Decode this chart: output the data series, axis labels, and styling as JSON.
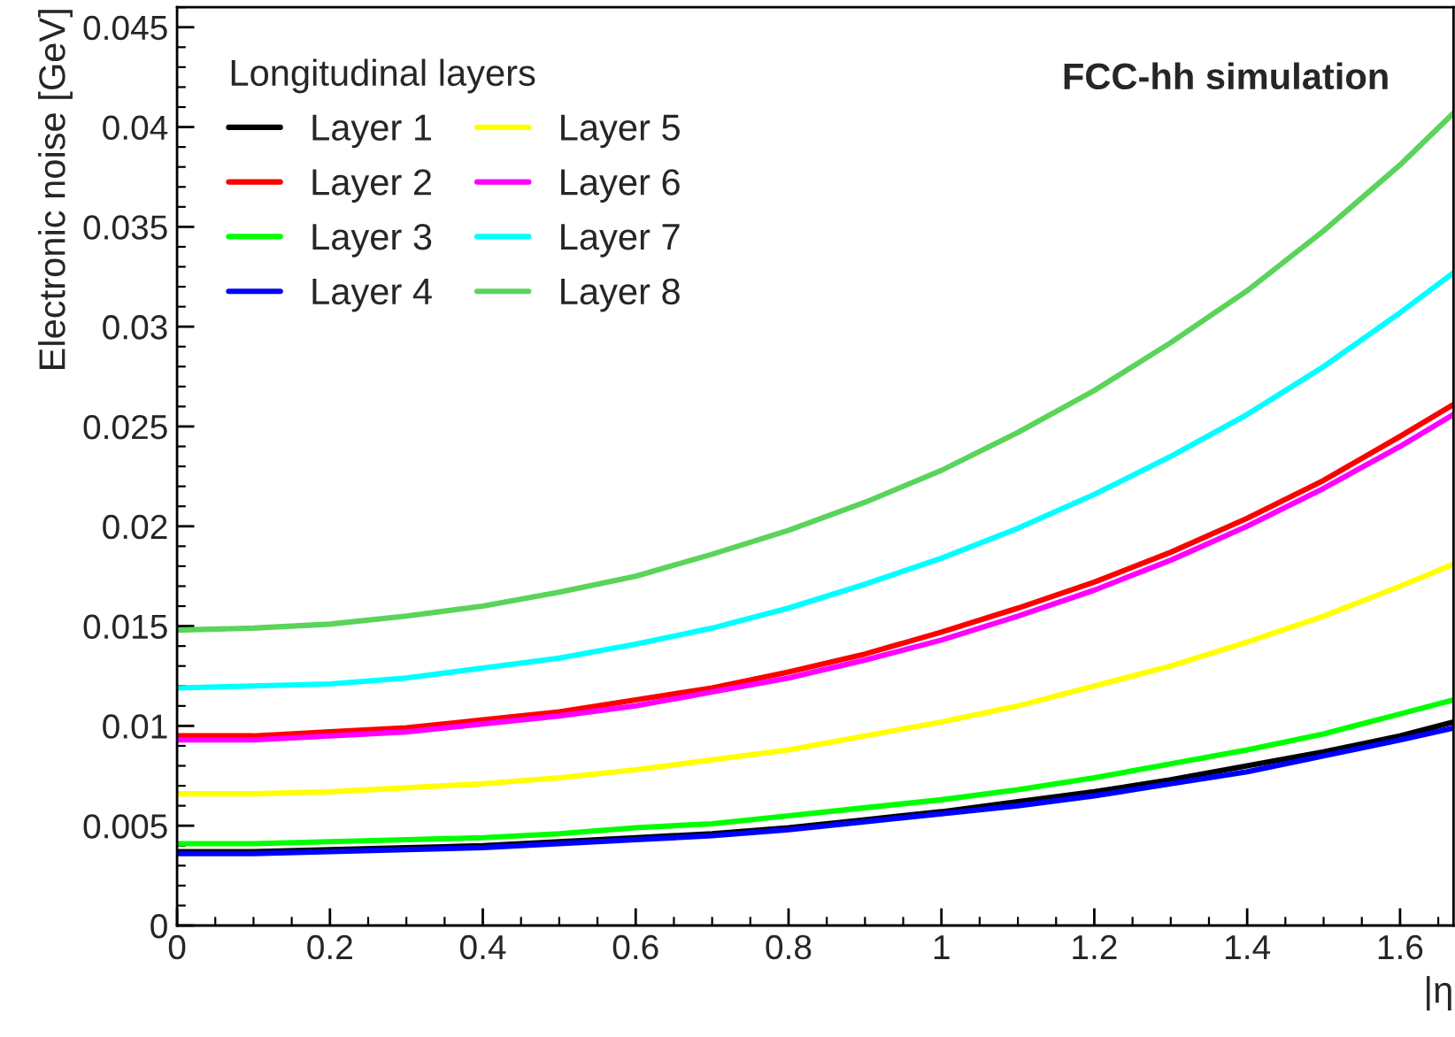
{
  "chart_data": {
    "type": "line",
    "xlabel": "|η",
    "ylabel": "Electronic noise [GeV]",
    "legend_title": "Longitudinal layers",
    "annotations": [
      "FCC-hh simulation"
    ],
    "x": [
      0,
      0.1,
      0.2,
      0.3,
      0.4,
      0.5,
      0.6,
      0.7,
      0.8,
      0.9,
      1.0,
      1.1,
      1.2,
      1.3,
      1.4,
      1.5,
      1.6,
      1.67
    ],
    "series": [
      {
        "name": "Layer 1",
        "color": "#000000",
        "values": [
          0.0037,
          0.0037,
          0.0038,
          0.0039,
          0.004,
          0.0042,
          0.0044,
          0.0046,
          0.0049,
          0.0053,
          0.0057,
          0.0062,
          0.0067,
          0.0073,
          0.008,
          0.0087,
          0.0095,
          0.0102
        ]
      },
      {
        "name": "Layer 2",
        "color": "#ff0000",
        "values": [
          0.0095,
          0.0095,
          0.0097,
          0.0099,
          0.0103,
          0.0107,
          0.0113,
          0.0119,
          0.0127,
          0.0136,
          0.0147,
          0.0159,
          0.0172,
          0.0187,
          0.0204,
          0.0223,
          0.0245,
          0.0261
        ]
      },
      {
        "name": "Layer 3",
        "color": "#00ff00",
        "values": [
          0.0041,
          0.0041,
          0.0042,
          0.0043,
          0.0044,
          0.0046,
          0.0049,
          0.0051,
          0.0055,
          0.0059,
          0.0063,
          0.0068,
          0.0074,
          0.0081,
          0.0088,
          0.0096,
          0.0106,
          0.0113
        ]
      },
      {
        "name": "Layer 4",
        "color": "#0000ff",
        "values": [
          0.0036,
          0.0036,
          0.0037,
          0.0038,
          0.0039,
          0.0041,
          0.0043,
          0.0045,
          0.0048,
          0.0052,
          0.0056,
          0.006,
          0.0065,
          0.0071,
          0.0077,
          0.0085,
          0.0093,
          0.0099
        ]
      },
      {
        "name": "Layer 5",
        "color": "#ffff00",
        "values": [
          0.0066,
          0.0066,
          0.0067,
          0.0069,
          0.0071,
          0.0074,
          0.0078,
          0.0083,
          0.0088,
          0.0095,
          0.0102,
          0.011,
          0.012,
          0.013,
          0.0142,
          0.0155,
          0.017,
          0.0181
        ]
      },
      {
        "name": "Layer 6",
        "color": "#ff00ff",
        "values": [
          0.0093,
          0.0093,
          0.0095,
          0.0097,
          0.0101,
          0.0105,
          0.011,
          0.0117,
          0.0124,
          0.0133,
          0.0143,
          0.0155,
          0.0168,
          0.0183,
          0.02,
          0.0219,
          0.024,
          0.0256
        ]
      },
      {
        "name": "Layer 7",
        "color": "#00ffff",
        "values": [
          0.0119,
          0.012,
          0.0121,
          0.0124,
          0.0129,
          0.0134,
          0.0141,
          0.0149,
          0.0159,
          0.0171,
          0.0184,
          0.0199,
          0.0216,
          0.0235,
          0.0256,
          0.028,
          0.0307,
          0.0327
        ]
      },
      {
        "name": "Layer 8",
        "color": "#5ad45a",
        "values": [
          0.0148,
          0.0149,
          0.0151,
          0.0155,
          0.016,
          0.0167,
          0.0175,
          0.0186,
          0.0198,
          0.0212,
          0.0228,
          0.0247,
          0.0268,
          0.0292,
          0.0318,
          0.0348,
          0.0381,
          0.0407
        ]
      }
    ],
    "xlim": [
      0,
      1.67
    ],
    "xticks": [
      0,
      0.2,
      0.4,
      0.6,
      0.8,
      1,
      1.2,
      1.4,
      1.6
    ],
    "ylim": [
      0,
      0.046
    ],
    "yticks": [
      0,
      0.005,
      0.01,
      0.015,
      0.02,
      0.025,
      0.03,
      0.035,
      0.04,
      0.045
    ],
    "grid": false,
    "legend": "top left",
    "line_style": "solid",
    "marker": "none"
  }
}
